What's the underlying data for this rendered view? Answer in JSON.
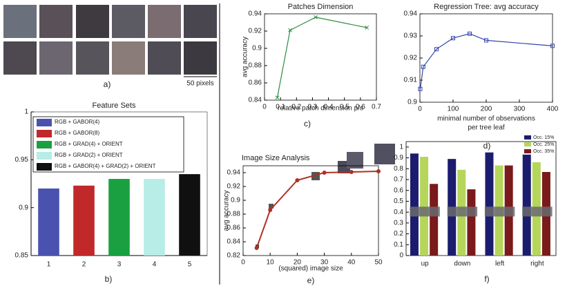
{
  "figure_a": {
    "panel_label": "a)",
    "scale_label": "50 pixels"
  },
  "chart_data": [
    {
      "type": "bar",
      "title": "Feature Sets",
      "panel_label": "b)",
      "categories": [
        "1",
        "2",
        "3",
        "4",
        "5"
      ],
      "values": [
        0.92,
        0.923,
        0.93,
        0.93,
        0.935
      ],
      "colors": [
        "#4a52b0",
        "#c0282a",
        "#1aa040",
        "#b8ece6",
        "#101010"
      ],
      "legend": [
        "RGB + GABOR(4)",
        "RGB + GABOR(8)",
        "RGB + GRAD(4) + ORIENT",
        "RGB + GRAD(2) + ORIENT",
        "RGB + GABOR(4) + GRAD(2) + ORIENT"
      ],
      "ylim": [
        0.85,
        1
      ],
      "yticks": [
        0.85,
        0.9,
        0.95,
        1
      ]
    },
    {
      "type": "line",
      "title": "Patches Dimension",
      "panel_label": "c)",
      "xlabel": "relative patch dimension p/s",
      "ylabel": "avg accuracy",
      "x": [
        0.08,
        0.16,
        0.32,
        0.64
      ],
      "values": [
        0.843,
        0.921,
        0.936,
        0.924
      ],
      "color": "#2e8b3e",
      "marker": "x",
      "xlim": [
        0,
        0.7
      ],
      "xticks": [
        0,
        0.1,
        0.2,
        0.3,
        0.4,
        0.5,
        0.6,
        0.7
      ],
      "ylim": [
        0.84,
        0.94
      ],
      "yticks": [
        0.84,
        0.86,
        0.88,
        0.9,
        0.92,
        0.94
      ]
    },
    {
      "type": "line",
      "title": "Regression Tree: avg accuracy",
      "panel_label": "d)",
      "xlabel": [
        "minimal number of observations",
        "per tree leaf"
      ],
      "x": [
        1,
        10,
        50,
        100,
        150,
        200,
        400
      ],
      "values": [
        0.906,
        0.916,
        0.924,
        0.929,
        0.931,
        0.928,
        0.9255
      ],
      "color": "#3344aa",
      "marker": "square",
      "xlim": [
        0,
        400
      ],
      "xticks": [
        0,
        100,
        200,
        300,
        400
      ],
      "ylim": [
        0.9,
        0.94
      ],
      "yticks": [
        0.9,
        0.91,
        0.92,
        0.93,
        0.94
      ]
    },
    {
      "type": "line",
      "title": "Image Size Analysis",
      "panel_label": "e)",
      "xlabel": "(squared) image size",
      "ylabel": "avg accuracy",
      "x": [
        5,
        10,
        20,
        30,
        40,
        50
      ],
      "values": [
        0.831,
        0.886,
        0.929,
        0.94,
        0.941,
        0.942
      ],
      "color": "#b03020",
      "marker": "circle",
      "xlim": [
        0,
        50
      ],
      "xticks": [
        0,
        10,
        20,
        30,
        40,
        50
      ],
      "ylim": [
        0.82,
        0.95
      ],
      "yticks": [
        0.82,
        0.84,
        0.86,
        0.88,
        0.9,
        0.92,
        0.94
      ]
    },
    {
      "type": "grouped-bar",
      "panel_label": "f)",
      "categories": [
        "up",
        "down",
        "left",
        "right"
      ],
      "series": [
        {
          "name": "Occ. 15%",
          "color": "#1c1c6e",
          "values": [
            0.94,
            0.89,
            0.95,
            0.93
          ]
        },
        {
          "name": "Occ. 25%",
          "color": "#b5d65a",
          "values": [
            0.91,
            0.79,
            0.83,
            0.86
          ]
        },
        {
          "name": "Occ. 35%",
          "color": "#7a1a1a",
          "values": [
            0.66,
            0.61,
            0.83,
            0.77
          ]
        }
      ],
      "ylim": [
        0,
        1.05
      ],
      "yticks": [
        0,
        0.1,
        0.2,
        0.3,
        0.4,
        0.5,
        0.6,
        0.7,
        0.8,
        0.9,
        1
      ]
    }
  ]
}
